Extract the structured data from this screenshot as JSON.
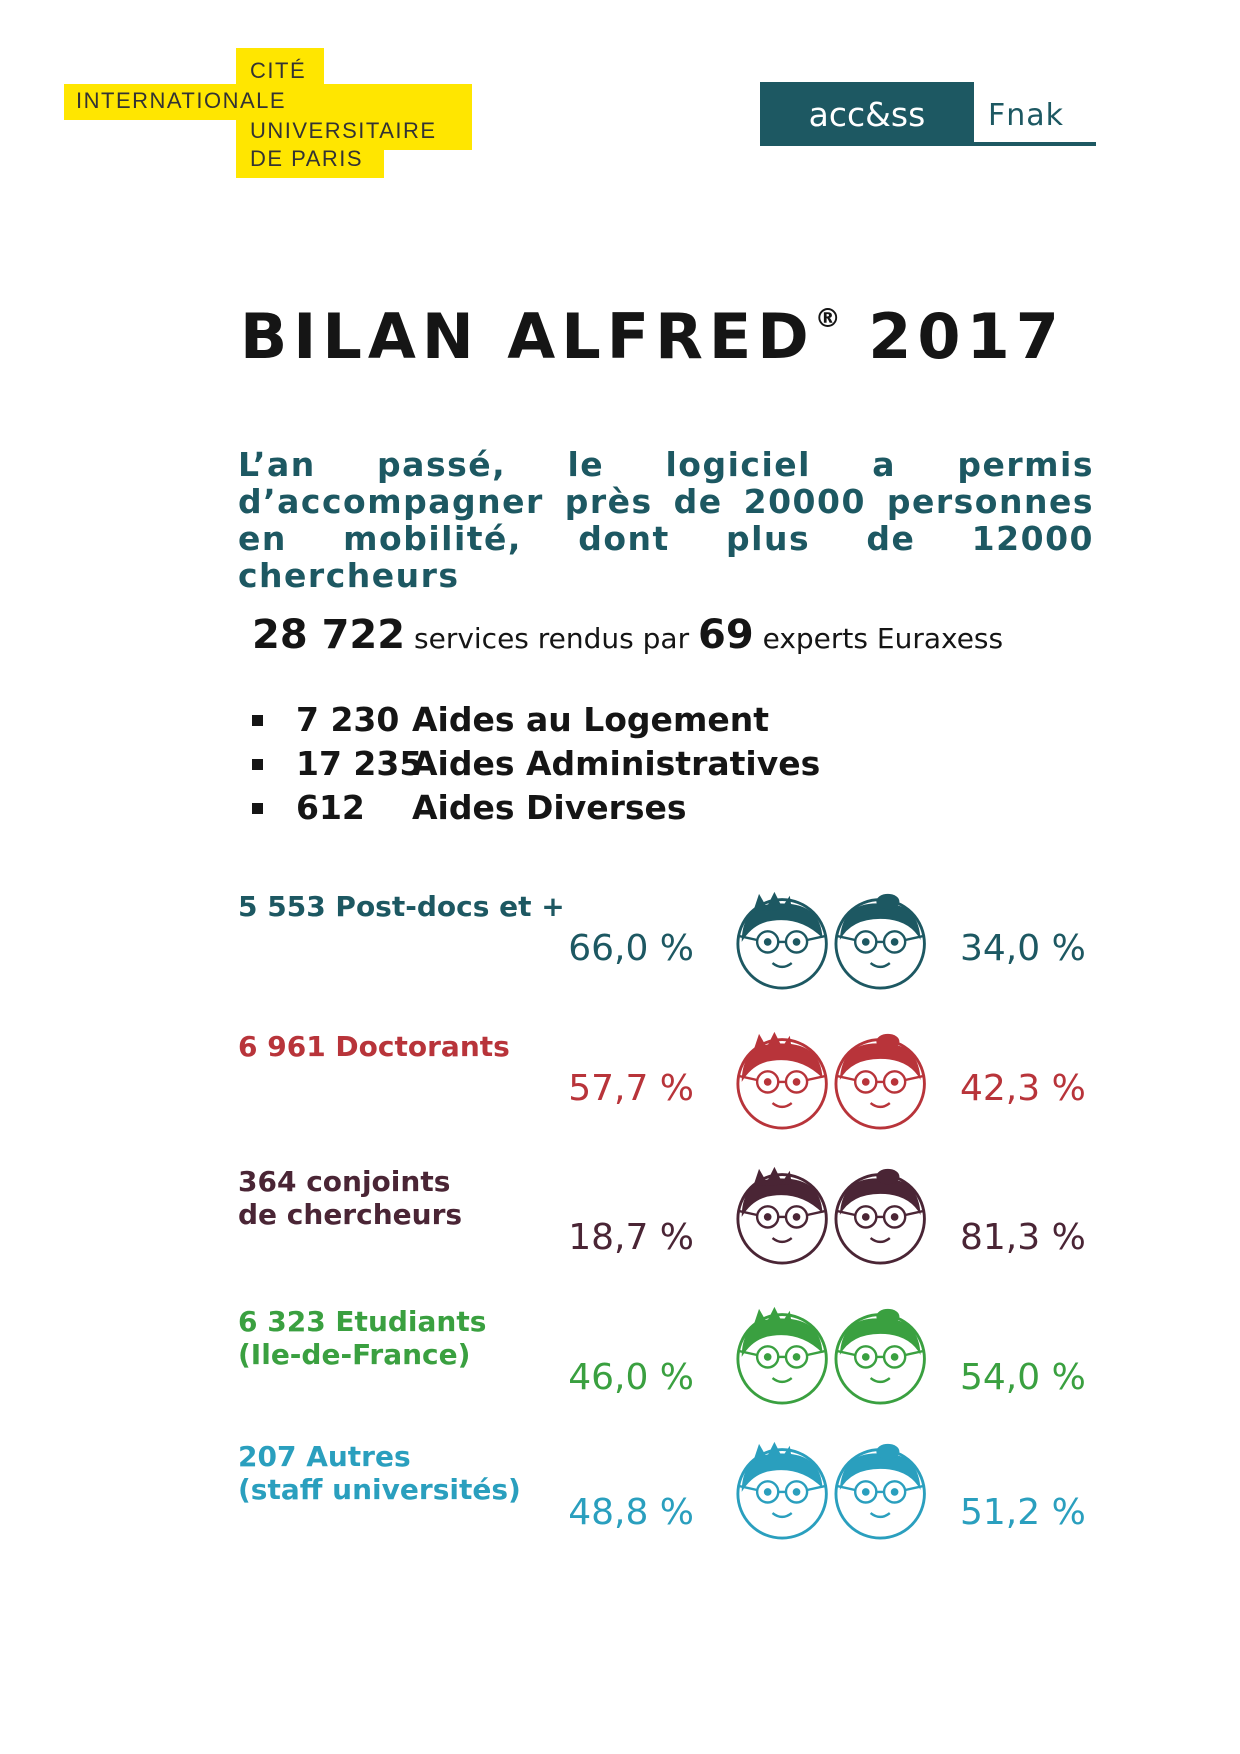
{
  "logos": {
    "cite": {
      "lines": [
        "CITÉ",
        "INTERNATIONALE",
        "UNIVERSITAIRE",
        "DE PARIS"
      ]
    },
    "access": {
      "box_text": "acc&ss",
      "side_text": "Fnak"
    }
  },
  "title": {
    "main": "BILAN ALFRED",
    "registered": "®",
    "year": "2017"
  },
  "intro": "L’an passé, le logiciel a permis d’accompagner près de 20000 personnes en mobilité, dont plus de 12000 chercheurs",
  "services": {
    "count": "28 722",
    "text1": "services rendus par",
    "experts": "69",
    "text2": "experts Euraxess"
  },
  "aides": [
    {
      "num": "7 230",
      "label": "Aides au Logement"
    },
    {
      "num": "17 235",
      "label": "Aides Administratives"
    },
    {
      "num": "612",
      "label": "Aides Diverses"
    }
  ],
  "categories": [
    {
      "line1": "5 553 Post-docs et +",
      "line2": "",
      "male_pct": "66,0 %",
      "female_pct": "34,0 %",
      "color": "#1d5862"
    },
    {
      "line1": "6 961 Doctorants",
      "line2": "",
      "male_pct": "57,7 %",
      "female_pct": "42,3 %",
      "color": "#b8343a"
    },
    {
      "line1": "364 conjoints",
      "line2": "de chercheurs",
      "male_pct": "18,7 %",
      "female_pct": "81,3 %",
      "color": "#4a2535"
    },
    {
      "line1": "6 323 Etudiants",
      "line2": "(Ile-de-France)",
      "male_pct": "46,0 %",
      "female_pct": "54,0 %",
      "color": "#3aa040"
    },
    {
      "line1": "207 Autres",
      "line2": "(staff universités)",
      "male_pct": "48,8 %",
      "female_pct": "51,2 %",
      "color": "#2a9fbe"
    }
  ]
}
